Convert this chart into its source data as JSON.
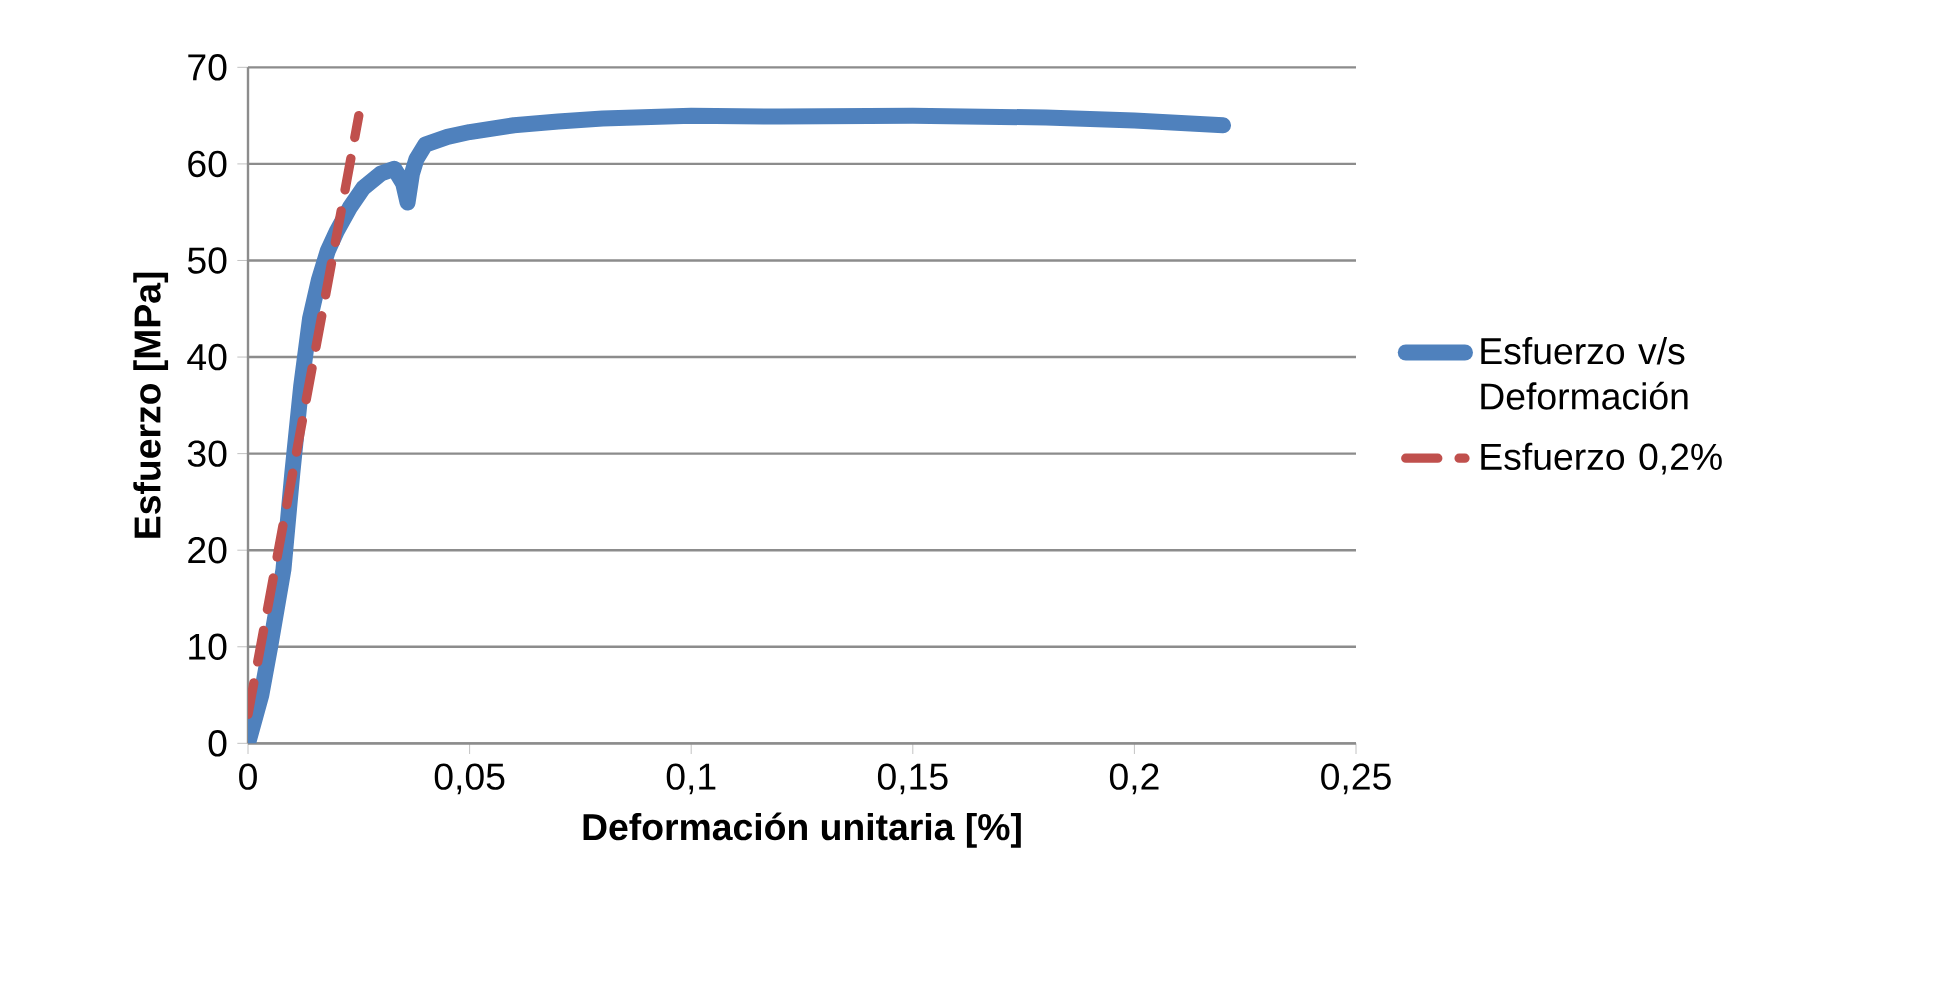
{
  "chart_data": {
    "type": "line",
    "xlabel": "Deformación unitaria [%]",
    "ylabel": "Esfuerzo [MPa]",
    "xlim": [
      0,
      0.25
    ],
    "xticks": [
      {
        "value": 0,
        "label": "0"
      },
      {
        "value": 0.05,
        "label": "0,05"
      },
      {
        "value": 0.1,
        "label": "0,1"
      },
      {
        "value": 0.15,
        "label": "0,15"
      },
      {
        "value": 0.2,
        "label": "0,2"
      },
      {
        "value": 0.25,
        "label": "0,25"
      }
    ],
    "ylim": [
      0,
      70
    ],
    "yticks": [
      0,
      10,
      20,
      30,
      40,
      50,
      60,
      70
    ],
    "grid": "y",
    "legend": "right",
    "marker": "none",
    "series": [
      {
        "name": "Esfuerzo v/s Deformación",
        "color": "#4f81bd",
        "line_style": "solid",
        "x": [
          0,
          0.003,
          0.005,
          0.008,
          0.01,
          0.012,
          0.014,
          0.016,
          0.018,
          0.02,
          0.023,
          0.026,
          0.03,
          0.033,
          0.035,
          0.036,
          0.037,
          0.038,
          0.04,
          0.045,
          0.05,
          0.06,
          0.07,
          0.08,
          0.1,
          0.12,
          0.15,
          0.18,
          0.2,
          0.22
        ],
        "values": [
          0,
          5,
          10,
          18,
          28,
          37,
          44,
          48,
          51,
          53,
          55.5,
          57.5,
          59,
          59.5,
          58,
          56,
          59,
          60.5,
          62,
          62.8,
          63.3,
          64,
          64.4,
          64.7,
          65,
          64.9,
          65,
          64.8,
          64.5,
          64
        ]
      },
      {
        "name": "Esfuerzo 0,2%",
        "color": "#c0504d",
        "line_style": "dashed",
        "x": [
          0,
          0.025
        ],
        "values": [
          3,
          65
        ]
      }
    ]
  }
}
